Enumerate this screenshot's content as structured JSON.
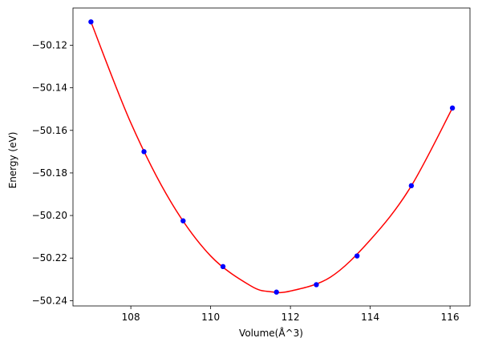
{
  "chart_data": {
    "type": "scatter",
    "title": "",
    "xlabel": "Volume(Å^3)",
    "ylabel": "Energy (eV)",
    "xlim": [
      106.55,
      116.5
    ],
    "ylim": [
      -50.2425,
      -50.1025
    ],
    "grid": false,
    "legend": "none",
    "x_ticks": [
      108,
      110,
      112,
      114,
      116
    ],
    "x_tick_labels": [
      "108",
      "110",
      "112",
      "114",
      "116"
    ],
    "y_ticks": [
      -50.24,
      -50.22,
      -50.2,
      -50.18,
      -50.16,
      -50.14,
      -50.12
    ],
    "y_tick_labels": [
      "−50.24",
      "−50.22",
      "−50.20",
      "−50.18",
      "−50.16",
      "−50.14",
      "−50.12"
    ],
    "series": [
      {
        "kind": "points",
        "color": "#0000ff",
        "x": [
          107.0,
          108.33,
          109.31,
          110.31,
          111.65,
          112.65,
          113.67,
          115.03,
          116.06
        ],
        "y": [
          -50.109,
          -50.17,
          -50.2025,
          -50.224,
          -50.236,
          -50.2325,
          -50.219,
          -50.186,
          -50.1495
        ]
      },
      {
        "kind": "fit-curve",
        "color": "#ff0000",
        "x": [
          107.0,
          108.0,
          109.0,
          110.0,
          111.0,
          111.5,
          112.0,
          113.0,
          114.0,
          115.0,
          116.06
        ],
        "y": [
          -50.109,
          -50.1565,
          -50.1935,
          -50.219,
          -50.233,
          -50.2358,
          -50.2355,
          -50.229,
          -50.2115,
          -50.187,
          -50.1495
        ]
      }
    ]
  }
}
